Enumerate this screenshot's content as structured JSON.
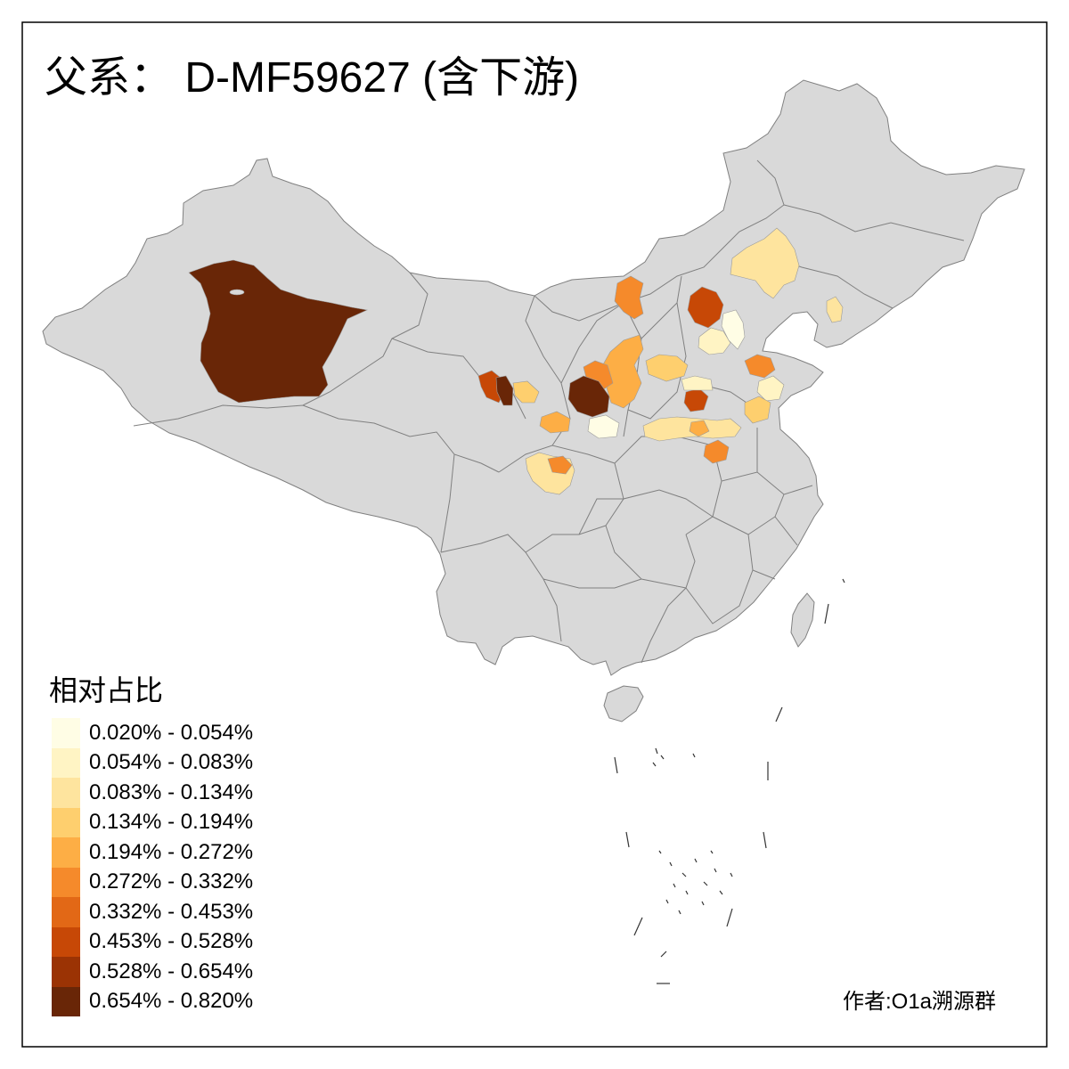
{
  "title": "父系： D-MF59627 (含下游)",
  "legend": {
    "title": "相对占比",
    "bins": [
      {
        "label": "0.020% - 0.054%",
        "color": "#fffde5"
      },
      {
        "label": "0.054% - 0.083%",
        "color": "#fff4c4"
      },
      {
        "label": "0.083% - 0.134%",
        "color": "#fee49e"
      },
      {
        "label": "0.134% - 0.194%",
        "color": "#fecf6e"
      },
      {
        "label": "0.194% - 0.272%",
        "color": "#fdae45"
      },
      {
        "label": "0.272% - 0.332%",
        "color": "#f58a2b"
      },
      {
        "label": "0.332% - 0.453%",
        "color": "#e26816"
      },
      {
        "label": "0.453% - 0.528%",
        "color": "#c74806"
      },
      {
        "label": "0.528% - 0.654%",
        "color": "#9b3304"
      },
      {
        "label": "0.654% - 0.820%",
        "color": "#692607"
      }
    ]
  },
  "author": "作者:O1a溯源群",
  "colors": {
    "land": "#d9d9d9",
    "boundary": "#808080",
    "frame": "#000000",
    "islands": "#333333"
  },
  "map": {
    "regions": [
      {
        "bin": 9
      },
      {
        "bin": 2
      },
      {
        "bin": 5
      },
      {
        "bin": 7
      },
      {
        "bin": 1
      },
      {
        "bin": 0
      },
      {
        "bin": 3
      },
      {
        "bin": 4
      },
      {
        "bin": 5
      },
      {
        "bin": 9
      },
      {
        "bin": 0
      },
      {
        "bin": 4
      },
      {
        "bin": 7
      },
      {
        "bin": 9
      },
      {
        "bin": 3
      },
      {
        "bin": 2
      },
      {
        "bin": 5
      },
      {
        "bin": 7
      },
      {
        "bin": 1
      },
      {
        "bin": 5
      },
      {
        "bin": 1
      },
      {
        "bin": 3
      },
      {
        "bin": 2
      },
      {
        "bin": 4
      },
      {
        "bin": 5
      },
      {
        "bin": 2
      }
    ]
  }
}
